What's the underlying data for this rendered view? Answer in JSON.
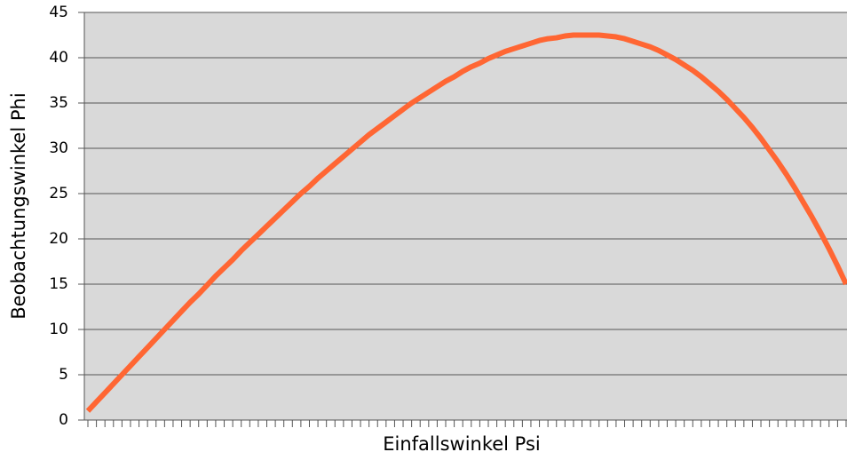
{
  "chart_data": {
    "type": "line",
    "x_label": "Einfallswinkel Psi",
    "y_label": "Beobachtungswinkel Phi",
    "categories": [
      null,
      null,
      null,
      null,
      null,
      null,
      null,
      null,
      null,
      null,
      null,
      null,
      null,
      null,
      null,
      null,
      null,
      null,
      null,
      null,
      null,
      null,
      null,
      null,
      null,
      null,
      null,
      null,
      null,
      null,
      null,
      null,
      null,
      null,
      null,
      null,
      null,
      null,
      null,
      null,
      null,
      null,
      null,
      null,
      null,
      null,
      null,
      null,
      null,
      null,
      null,
      null,
      null,
      null,
      null,
      null,
      null,
      null,
      null,
      null,
      null,
      null,
      null,
      null,
      null,
      null,
      null,
      null,
      null,
      null,
      null,
      null,
      null,
      null,
      null,
      null,
      null,
      null,
      null,
      null,
      null,
      null,
      null,
      null,
      null,
      null,
      null,
      null,
      null,
      null
    ],
    "series": [
      {
        "color": "#ff6633",
        "values": [
          1.0,
          2.0,
          3.0,
          4.0,
          5.0,
          6.0,
          7.0,
          8.0,
          9.0,
          10.0,
          11.0,
          12.0,
          13.0,
          13.9,
          14.9,
          15.9,
          16.8,
          17.7,
          18.7,
          19.6,
          20.5,
          21.4,
          22.3,
          23.2,
          24.1,
          25.0,
          25.8,
          26.7,
          27.5,
          28.3,
          29.1,
          29.9,
          30.7,
          31.5,
          32.2,
          32.9,
          33.6,
          34.3,
          35.0,
          35.6,
          36.2,
          36.8,
          37.4,
          37.9,
          38.5,
          39.0,
          39.4,
          39.9,
          40.3,
          40.7,
          41.0,
          41.3,
          41.6,
          41.9,
          42.1,
          42.2,
          42.4,
          42.5,
          42.5,
          42.5,
          42.5,
          42.4,
          42.3,
          42.1,
          41.8,
          41.5,
          41.2,
          40.8,
          40.3,
          39.8,
          39.2,
          38.6,
          37.9,
          37.1,
          36.3,
          35.4,
          34.4,
          33.4,
          32.3,
          31.1,
          29.8,
          28.5,
          27.1,
          25.6,
          24.0,
          22.4,
          20.7,
          18.9,
          17.0,
          15.0
        ]
      }
    ],
    "ylim": [
      0,
      45
    ],
    "yticks": [
      0,
      5,
      10,
      15,
      20,
      25,
      30,
      35,
      40,
      45
    ],
    "grid": true
  }
}
